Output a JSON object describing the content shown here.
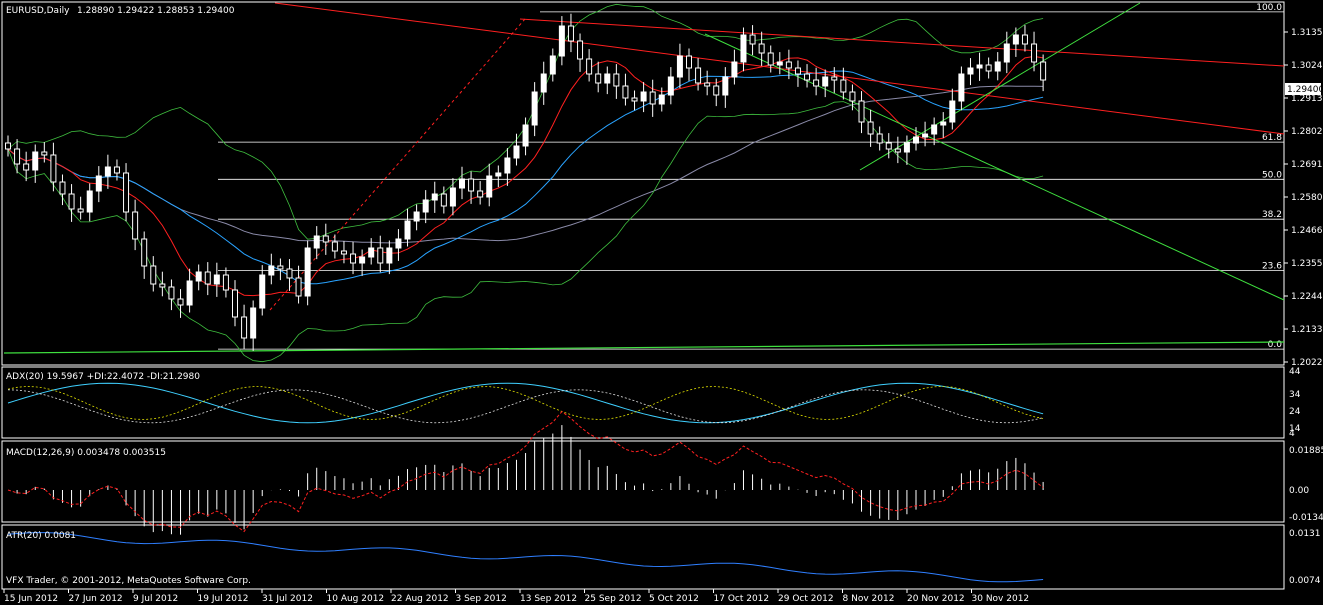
{
  "colors": {
    "background": "#000000",
    "bull": "#ffffff",
    "bear": "#ffffff",
    "ma_fast": "#ff2020",
    "ma_mid": "#29a3ff",
    "ma_slow": "#8a8aa8",
    "bbands": "#3fbf3f",
    "fib": "#ffffff",
    "trend_red": "#ff2020",
    "trend_green": "#3fe03f",
    "adx": "#3fd0ff",
    "di_plus": "#e0e000",
    "di_minus": "#e0e0e0",
    "macd_hist": "#ffffff",
    "macd_signal": "#ff2020",
    "atr": "#2f7fff"
  },
  "main": {
    "title": "EURUSD,Daily",
    "ohlc": "1.28890 1.29422 1.28853 1.29400",
    "current_price": "1.29400",
    "price_axis": [
      "1.31350",
      "1.30240",
      "1.29130",
      "1.28020",
      "1.26910",
      "1.25800",
      "1.24660",
      "1.23550",
      "1.22440",
      "1.21330",
      "1.20220"
    ],
    "fib_levels": [
      {
        "label": "100.0",
        "price": 1.3167
      },
      {
        "label": "61.8",
        "price": 1.2733
      },
      {
        "label": "50.0",
        "price": 1.2609
      },
      {
        "label": "38.2",
        "price": 1.2476
      },
      {
        "label": "23.6",
        "price": 1.2305
      },
      {
        "label": "0.0",
        "price": 1.2043
      }
    ]
  },
  "adx": {
    "label": "ADX(20) 19.5967 +DI:22.4072 -DI:21.2980",
    "axis": [
      "44",
      "34",
      "24",
      "14",
      "4"
    ]
  },
  "macd": {
    "label": "MACD(12,26,9) 0.003478 0.003515",
    "axis": [
      "0.01885",
      "0.00",
      "-0.01344"
    ]
  },
  "atr": {
    "label": "ATR(20) 0.0081",
    "axis": [
      "0.0131",
      "0.0074"
    ]
  },
  "copyright": "VFX Trader, © 2001-2012, MetaQuotes Software Corp.",
  "x_labels": [
    "15 Jun 2012",
    "27 Jun 2012",
    "9 Jul 2012",
    "19 Jul 2012",
    "31 Jul 2012",
    "10 Aug 2012",
    "22 Aug 2012",
    "3 Sep 2012",
    "13 Sep 2012",
    "25 Sep 2012",
    "5 Oct 2012",
    "17 Oct 2012",
    "29 Oct 2012",
    "8 Nov 2012",
    "20 Nov 2012",
    "30 Nov 2012"
  ],
  "chart_data": {
    "type": "candlestick",
    "title": "EURUSD,Daily",
    "y_range": [
      1.2,
      1.319
    ],
    "closes": [
      1.271,
      1.266,
      1.264,
      1.27,
      1.269,
      1.26,
      1.256,
      1.251,
      1.25,
      1.257,
      1.262,
      1.265,
      1.263,
      1.25,
      1.241,
      1.232,
      1.226,
      1.225,
      1.221,
      1.219,
      1.227,
      1.23,
      1.226,
      1.229,
      1.224,
      1.215,
      1.208,
      1.218,
      1.229,
      1.232,
      1.231,
      1.228,
      1.222,
      1.238,
      1.242,
      1.24,
      1.237,
      1.236,
      1.233,
      1.235,
      1.238,
      1.233,
      1.238,
      1.241,
      1.247,
      1.25,
      1.254,
      1.256,
      1.252,
      1.258,
      1.261,
      1.257,
      1.255,
      1.262,
      1.263,
      1.268,
      1.272,
      1.279,
      1.29,
      1.296,
      1.302,
      1.312,
      1.307,
      1.301,
      1.296,
      1.293,
      1.296,
      1.292,
      1.288,
      1.287,
      1.29,
      1.286,
      1.289,
      1.295,
      1.302,
      1.298,
      1.293,
      1.292,
      1.289,
      1.295,
      1.3,
      1.309,
      1.306,
      1.303,
      1.299,
      1.3,
      1.298,
      1.296,
      1.294,
      1.292,
      1.295,
      1.294,
      1.29,
      1.287,
      1.28,
      1.276,
      1.273,
      1.271,
      1.27,
      1.273,
      1.275,
      1.276,
      1.279,
      1.28,
      1.287,
      1.296,
      1.298,
      1.299,
      1.297,
      1.3,
      1.306,
      1.309,
      1.306,
      1.3,
      1.294
    ],
    "series": [
      {
        "name": "EURUSD",
        "values": "see closes"
      }
    ],
    "x_labels": [
      "15 Jun 2012",
      "27 Jun 2012",
      "9 Jul 2012",
      "19 Jul 2012",
      "31 Jul 2012",
      "10 Aug 2012",
      "22 Aug 2012",
      "3 Sep 2012",
      "13 Sep 2012",
      "25 Sep 2012",
      "5 Oct 2012",
      "17 Oct 2012",
      "29 Oct 2012",
      "8 Nov 2012",
      "20 Nov 2012",
      "30 Nov 2012"
    ],
    "last": {
      "open": 1.2889,
      "high": 1.29422,
      "low": 1.28853,
      "close": 1.294
    }
  }
}
